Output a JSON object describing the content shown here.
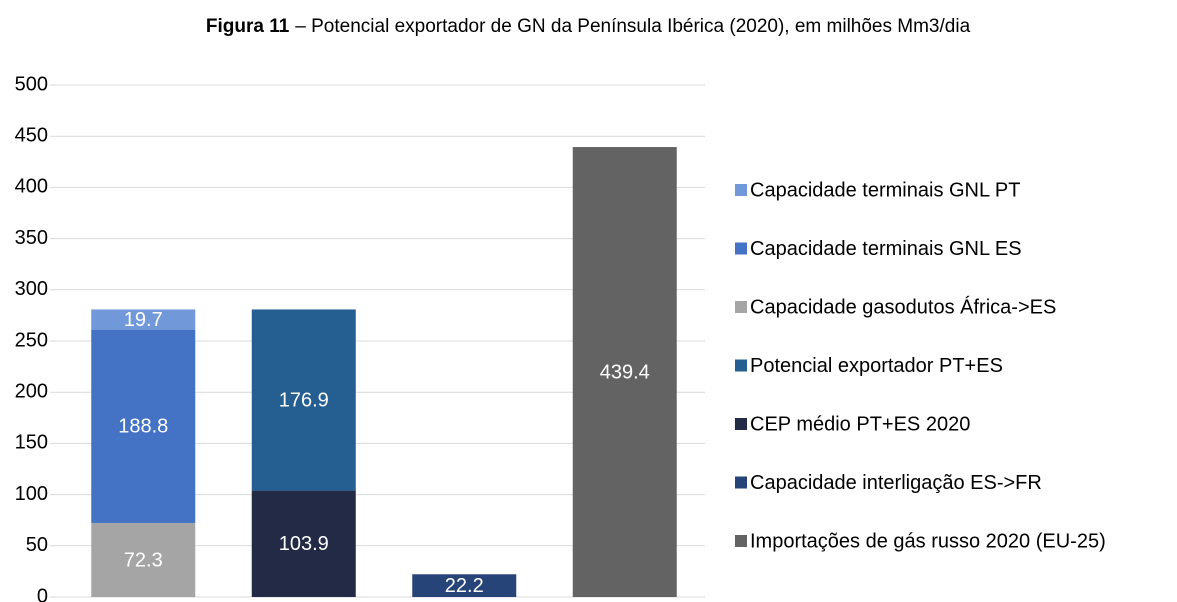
{
  "chart_data": {
    "type": "stacked_bar",
    "title": {
      "label": "Figura 11",
      "text": "– Potencial exportador de GN da Península Ibérica (2020), em milhões Mm3/dia"
    },
    "categories": [
      null,
      null,
      null,
      null
    ],
    "series": [
      {
        "name": "Capacidade terminais GNL PT",
        "color": "#7199d9",
        "values": [
          19.7,
          null,
          null,
          null
        ]
      },
      {
        "name": "Capacidade terminais GNL ES",
        "color": "#4472c4",
        "values": [
          188.8,
          null,
          null,
          null
        ]
      },
      {
        "name": "Capacidade gasodutos África->ES",
        "color": "#a5a5a5",
        "values": [
          72.3,
          null,
          null,
          null
        ]
      },
      {
        "name": "Potencial exportador PT+ES",
        "color": "#255e91",
        "values": [
          null,
          176.9,
          null,
          null
        ]
      },
      {
        "name": "CEP médio PT+ES 2020",
        "color": "#222a45",
        "values": [
          null,
          103.9,
          null,
          null
        ]
      },
      {
        "name": "Capacidade interligação ES->FR",
        "color": "#264478",
        "values": [
          null,
          null,
          22.2,
          null
        ]
      },
      {
        "name": "Importações de gás russo 2020 (EU-25)",
        "color": "#636363",
        "values": [
          null,
          null,
          null,
          439.4
        ]
      }
    ],
    "ylim": [
      0,
      500
    ],
    "yticks": [
      0,
      50,
      100,
      150,
      200,
      250,
      300,
      350,
      400,
      450,
      500
    ],
    "grid": true,
    "legend": "right"
  }
}
